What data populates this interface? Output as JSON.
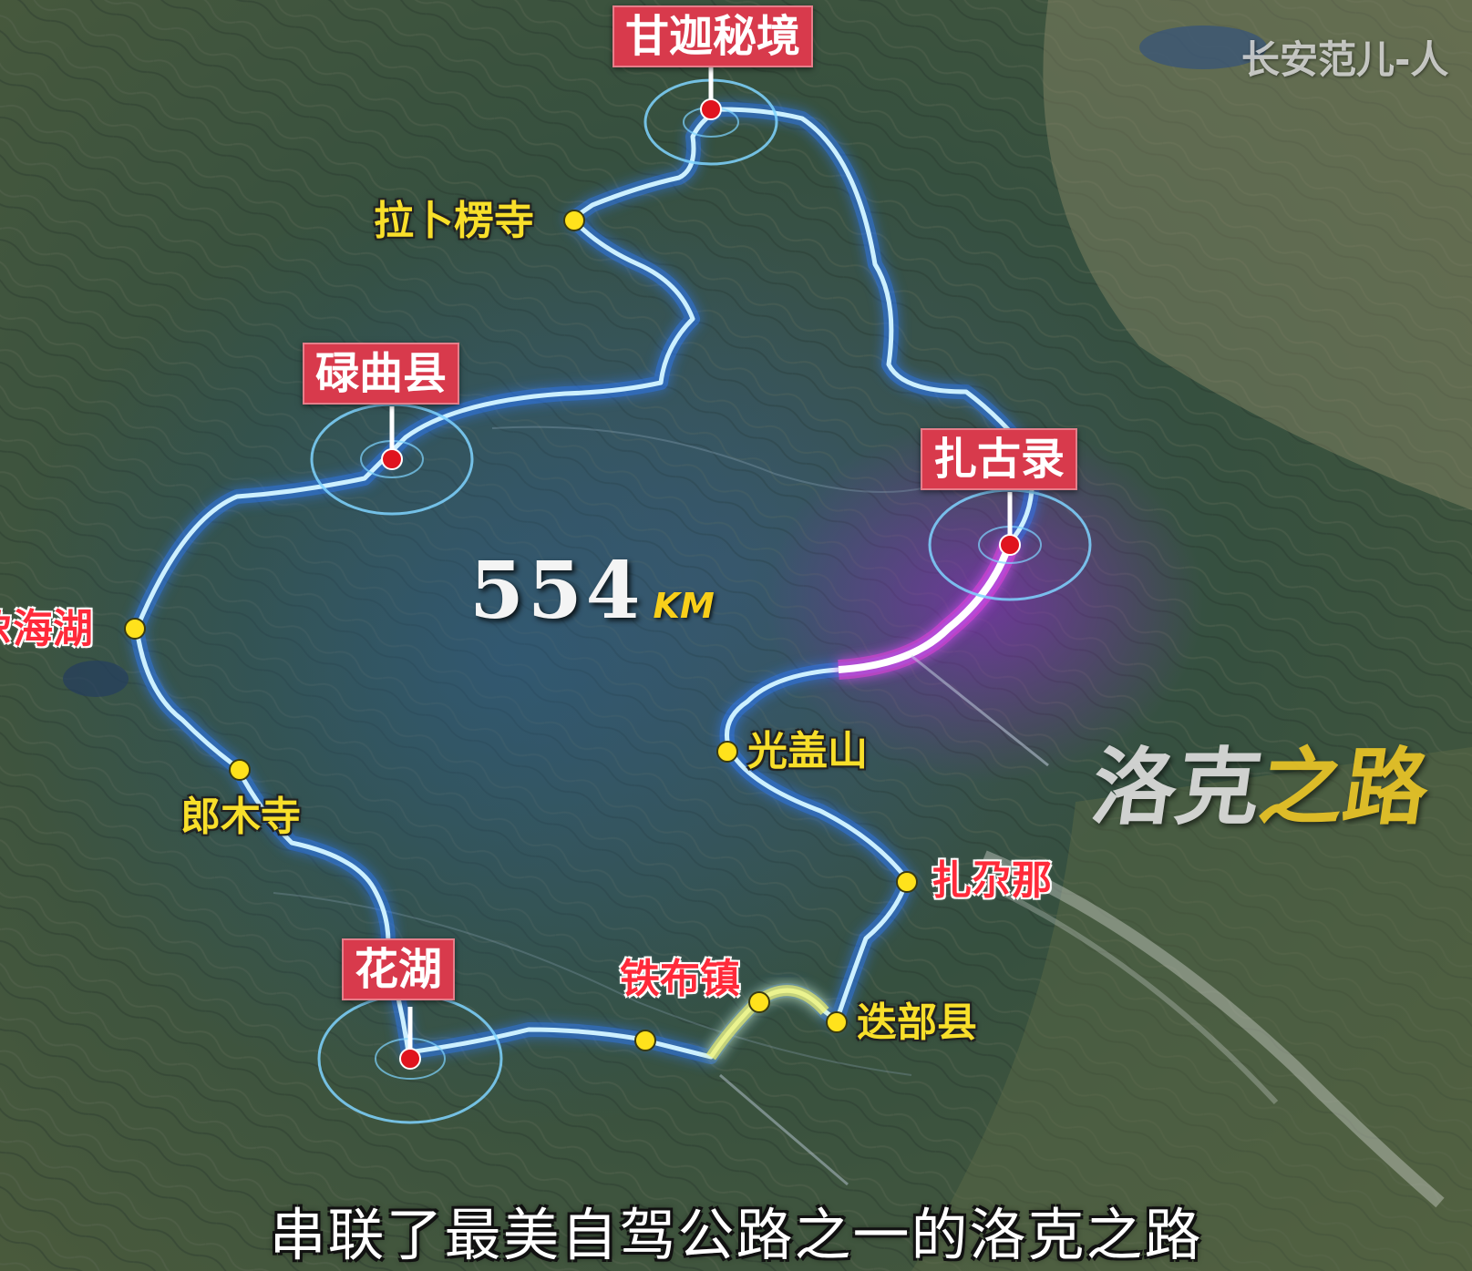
{
  "map": {
    "major_stops": [
      {
        "id": "ganjia",
        "label": "甘迦秘境"
      },
      {
        "id": "luqu",
        "label": "碌曲县"
      },
      {
        "id": "zagulu",
        "label": "扎古录"
      },
      {
        "id": "huahu",
        "label": "花湖"
      }
    ],
    "minor_stops": [
      {
        "id": "labuleng",
        "label": "拉卜楞寺",
        "color": "#f8df2a"
      },
      {
        "id": "gahai",
        "label": "尕海湖",
        "color": "#ff2a3a"
      },
      {
        "id": "langmu",
        "label": "郎木寺",
        "color": "#f8df2a"
      },
      {
        "id": "guanggai",
        "label": "光盖山",
        "color": "#f8df2a"
      },
      {
        "id": "zhagana",
        "label": "扎尕那",
        "color": "#ff2a3a"
      },
      {
        "id": "diebu",
        "label": "迭部县",
        "color": "#f8df2a"
      },
      {
        "id": "tiebu",
        "label": "铁布镇",
        "color": "#ff2a3a"
      }
    ],
    "distance": {
      "value": "554",
      "unit": "KM"
    },
    "route_title": {
      "part1": "洛克",
      "part2": "之路"
    },
    "watermark": "长安范儿-人",
    "subtitle": "串联了最美自驾公路之一的洛克之路",
    "colors": {
      "route": "#9fe2ff",
      "route_glow": "#2f7cff",
      "highlight_magenta": "#ff3ee0",
      "highlight_yellow": "#f5f56a",
      "label_bg": "#d83a4c",
      "dot_yellow": "#ffe21c",
      "pin_red": "#e0141e"
    }
  }
}
